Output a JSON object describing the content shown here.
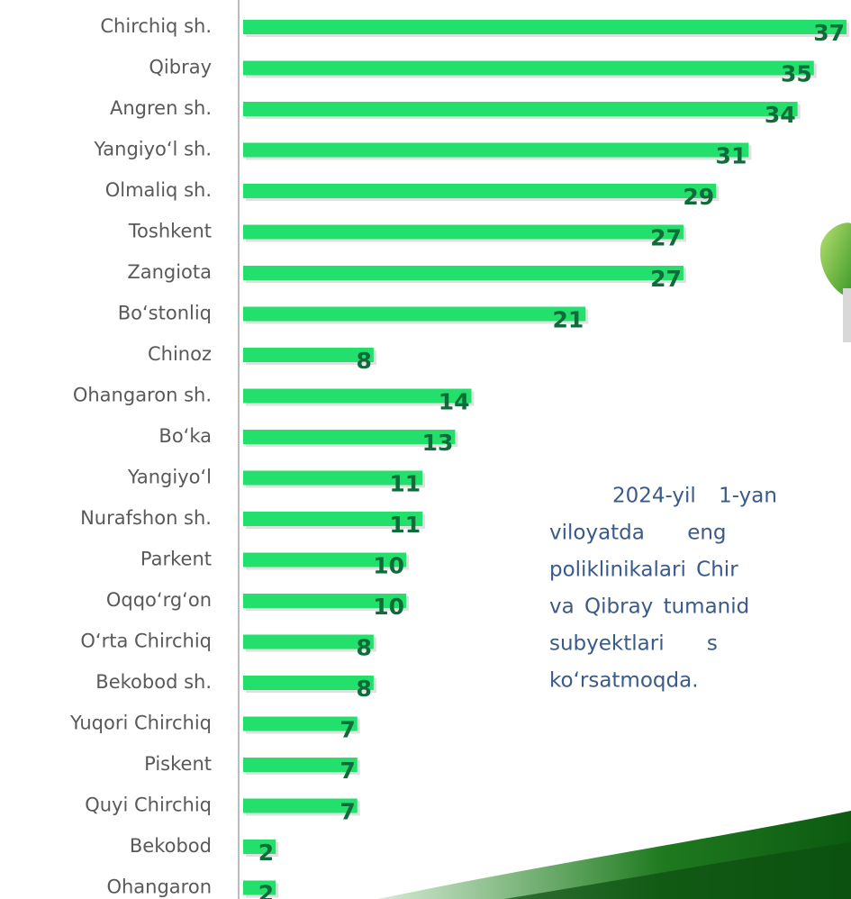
{
  "chart_data": {
    "type": "barh",
    "categories": [
      "Chirchiq sh.",
      "Qibray",
      "Angren sh.",
      "Yangiyo‘l sh.",
      "Olmaliq sh.",
      "Toshkent",
      "Zangiota",
      "Bo‘stonliq",
      "Chinoz",
      "Ohangaron sh.",
      "Bo‘ka",
      "Yangiyo‘l",
      "Nurafshon sh.",
      "Parkent",
      "Oqqo‘rg‘on",
      "O‘rta Chirchiq",
      "Bekobod sh.",
      "Yuqori Chirchiq",
      "Piskent",
      "Quyi Chirchiq",
      "Bekobod",
      "Ohangaron"
    ],
    "values": [
      37,
      35,
      34,
      31,
      29,
      27,
      27,
      21,
      8,
      14,
      13,
      11,
      11,
      10,
      10,
      8,
      8,
      7,
      7,
      7,
      2,
      2
    ],
    "color": "#22e06b",
    "label_color": "#0f6b3a",
    "annotation_lines": [
      "2024-yil 1-yan",
      "viloyatda eng",
      "poliklinikalari Chir",
      "va Qibray tumanid",
      "subyektlari s",
      "ko‘rsatmoqda."
    ]
  }
}
